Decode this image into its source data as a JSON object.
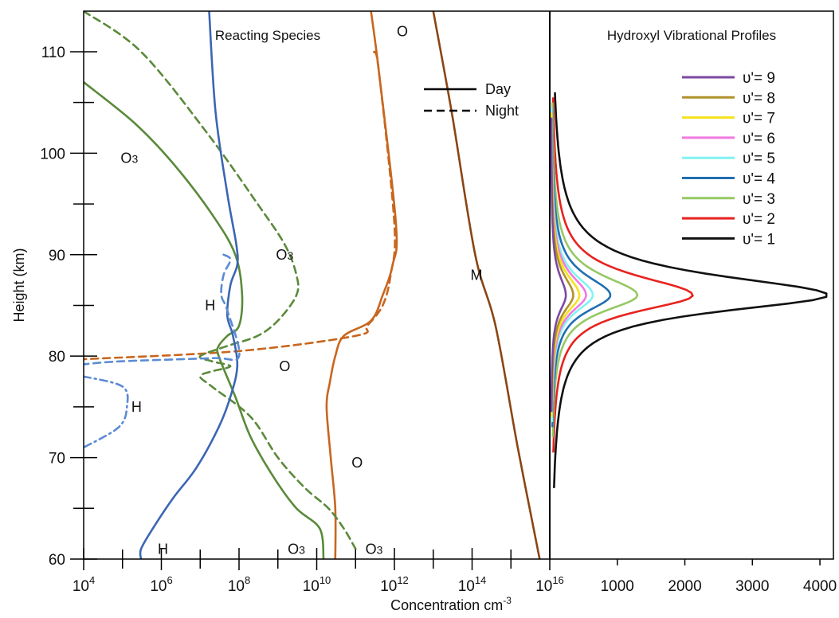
{
  "chart_data": [
    {
      "type": "line",
      "title": "Reacting Species",
      "xlabel": "Concentration cm",
      "xlabel_sup": "-3",
      "ylabel": "Height (km)",
      "xscale": "log",
      "xlim": [
        10000,
        1e+16
      ],
      "ylim": [
        60,
        114
      ],
      "xticks_mantissa": "10",
      "xticks_exp": [
        "4",
        "6",
        "8",
        "10",
        "12",
        "14",
        "16"
      ],
      "xtick_values": [
        10000.0,
        1000000.0,
        100000000.0,
        10000000000.0,
        1000000000000.0,
        100000000000000.0,
        1e+16
      ],
      "yticks": [
        60,
        70,
        80,
        90,
        100,
        110
      ],
      "legend": {
        "position": "top-right",
        "entries": [
          "Day",
          "Night"
        ]
      },
      "colors": {
        "H": "#3b66b4",
        "H_night": "#5b8bd4",
        "O3": "#5a8a3a",
        "O": "#c8661e",
        "M": "#8b4513"
      },
      "series": [
        {
          "label": "M",
          "style": "day",
          "color_key": "M",
          "x": [
            10000000000000.0,
            30000000000000.0,
            120000000000000.0,
            400000000000000.0,
            1500000000000000.0,
            5500000000000000.0
          ],
          "y": [
            114,
            104,
            90,
            83,
            71,
            60
          ]
        },
        {
          "label": "O",
          "style": "day",
          "color_key": "O",
          "x": [
            250000000000.0,
            400000000000.0,
            1100000000000.0,
            900000000000.0,
            500000000000.0,
            250000000000.0,
            50000000000.0,
            30000000000.0,
            22000000000.0,
            18000000000.0,
            23000000000.0,
            30000000000.0,
            30000000000.0
          ],
          "y": [
            114,
            108,
            93,
            89,
            86,
            83.5,
            82,
            80,
            77.5,
            75,
            70,
            65,
            60
          ]
        },
        {
          "label": "O",
          "style": "night",
          "color_key": "O",
          "x": [
            300000000000.0,
            400000000000.0,
            1000000000000.0,
            800000000000.0,
            500000000000.0,
            200000000000.0,
            100000000000.0,
            100000000.0,
            10000.0
          ],
          "y": [
            110,
            108,
            93,
            88,
            85,
            83,
            82,
            80.5,
            79.7
          ]
        },
        {
          "label": "O3",
          "style": "day",
          "color_key": "O3",
          "x": [
            10000.0,
            200000.0,
            2000000.0,
            20000000.0,
            80000000.0,
            120000000.0,
            100000000.0,
            50000000.0,
            30000000.0,
            30000000.0,
            80000000.0,
            200000000.0,
            800000000.0,
            3000000000.0,
            12000000000.0,
            15000000000.0
          ],
          "y": [
            107,
            103,
            99,
            94,
            90,
            86,
            83,
            82,
            81,
            80,
            76,
            72,
            68,
            65,
            63,
            60
          ]
        },
        {
          "label": "O3",
          "style": "night",
          "color_key": "O3",
          "x": [
            10000.0,
            300000.0,
            15000000.0,
            300000000.0,
            1500000000.0,
            3000000000.0,
            3000000000.0,
            1000000000.0,
            300000000.0,
            50000000.0,
            10000000.0,
            20000000.0,
            60000000.0,
            20000000.0,
            10000000.0,
            20000000.0,
            200000000.0,
            1000000000.0,
            5000000000.0,
            20000000000.0,
            50000000000.0,
            100000000000.0
          ],
          "y": [
            114,
            110,
            102,
            95,
            91,
            88,
            86,
            83.5,
            82,
            81,
            80,
            79.5,
            79,
            78.5,
            78,
            77,
            74,
            70,
            67,
            65,
            63,
            61
          ]
        },
        {
          "label": "H",
          "style": "day",
          "color_key": "H",
          "x": [
            17000000.0,
            25000000.0,
            50000000.0,
            85000000.0,
            90000000.0,
            60000000.0,
            50000000.0,
            70000000.0,
            90000000.0,
            60000000.0,
            30000000.0,
            8000000.0,
            2000000.0,
            600000.0,
            300000.0,
            300000.0
          ],
          "y": [
            114,
            104,
            96,
            91,
            89,
            87,
            84,
            82,
            79,
            76,
            73,
            69,
            66,
            63,
            61,
            60
          ]
        },
        {
          "label": "H",
          "style": "night",
          "color_key": "H_night",
          "x": [
            40000000.0,
            60000000.0,
            40000000.0,
            35000000.0,
            50000000.0,
            100000000.0,
            20000000.0,
            100000.0,
            10000.0
          ],
          "y": [
            90,
            89.5,
            88,
            86,
            84.5,
            80,
            79.8,
            79.5,
            79.2
          ]
        },
        {
          "label": "H",
          "style": "dashdot",
          "color_key": "H_night",
          "x": [
            10000.0,
            100000.0,
            130000.0,
            80000.0,
            10000.0
          ],
          "y": [
            78,
            77,
            75,
            73,
            71
          ]
        }
      ],
      "labels": [
        {
          "text": "O3",
          "x": 150000.0,
          "y": 99.5
        },
        {
          "text": "O3",
          "x": 1500000000.0,
          "y": 90
        },
        {
          "text": "H",
          "x": 18000000.0,
          "y": 85
        },
        {
          "text": "O",
          "x": 1500000000.0,
          "y": 79
        },
        {
          "text": "H",
          "x": 230000.0,
          "y": 75
        },
        {
          "text": "O",
          "x": 110000000000.0,
          "y": 69.5
        },
        {
          "text": "O",
          "x": 1600000000000.0,
          "y": 112
        },
        {
          "text": "M",
          "x": 130000000000000.0,
          "y": 88
        },
        {
          "text": "H",
          "x": 1100000.0,
          "y": 61
        },
        {
          "text": "O3",
          "x": 3000000000.0,
          "y": 61
        },
        {
          "text": "O3",
          "x": 300000000000.0,
          "y": 61
        }
      ]
    },
    {
      "type": "line",
      "title": "Hydroxyl Vibrational Profiles",
      "xlim": [
        0,
        4200
      ],
      "ylim": [
        60,
        114
      ],
      "xticks": [
        "1000",
        "2000",
        "3000",
        "4000"
      ],
      "xtick_values": [
        1000,
        2000,
        3000,
        4000
      ],
      "legend": {
        "position": "top-right"
      },
      "peak_height_km": 86,
      "profiles": [
        {
          "name": "υ'= 9",
          "color": "#7a4aa2",
          "peak": 220,
          "top": 103.5,
          "bottom": 74.5
        },
        {
          "name": "υ'= 8",
          "color": "#b0912a",
          "peak": 330,
          "top": 103.5,
          "bottom": 74.5
        },
        {
          "name": "υ'= 7",
          "color": "#f4e21e",
          "peak": 420,
          "top": 104,
          "bottom": 74
        },
        {
          "name": "υ'= 6",
          "color": "#f07ae0",
          "peak": 520,
          "top": 104,
          "bottom": 74
        },
        {
          "name": "υ'= 5",
          "color": "#80f4f0",
          "peak": 620,
          "top": 104.5,
          "bottom": 73.5
        },
        {
          "name": "υ'= 4",
          "color": "#1f6fb2",
          "peak": 880,
          "top": 104.5,
          "bottom": 73
        },
        {
          "name": "υ'= 3",
          "color": "#96c864",
          "peak": 1280,
          "top": 105,
          "bottom": 72
        },
        {
          "name": "υ'= 2",
          "color": "#e8221e",
          "peak": 2100,
          "top": 105.5,
          "bottom": 70.5
        },
        {
          "name": "υ'= 1",
          "color": "#111111",
          "peak": 4100,
          "top": 106,
          "bottom": 67
        }
      ]
    }
  ]
}
